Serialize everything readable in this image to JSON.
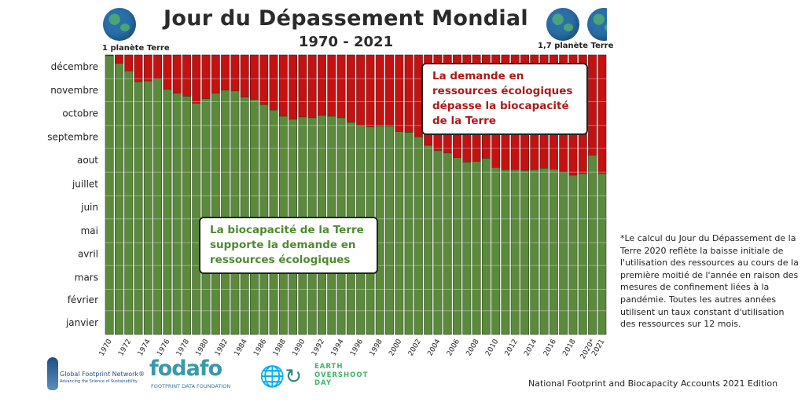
{
  "header": {
    "title": "Jour du Dépassement Mondial",
    "subtitle": "1970 - 2021",
    "left_label": "1 planète Terre",
    "right_label": "1,7 planète Terre"
  },
  "annotations": {
    "red_box": "La demande en ressources écologiques dépasse la biocapacité de la Terre",
    "green_box": "La biocapacité de la Terre supporte la demande en ressources écologiques",
    "note": "*Le calcul du Jour du Dépassement de la Terre 2020 reflète la baisse initiale de l'utilisation des ressources au cours de la première moitié de l'année en raison des mesures de confinement liées à la pandémie. Toutes les autres années utilisent un taux constant d'utilisation des ressources sur 12 mois.",
    "source": "National Footprint and Biocapacity Accounts 2021 Edition"
  },
  "logos": {
    "gfn_name": "Global Footprint Network®",
    "gfn_tag": "Advancing the Science of Sustainability",
    "fodafo_name": "FODAFO",
    "fodafo_sub": "FOOTPRINT DATA FOUNDATION",
    "eod_text": "EARTH OVERSHOOT DAY"
  },
  "colors": {
    "green": "#5b8a3c",
    "red": "#c41111",
    "grid": "#ffffff"
  },
  "chart_data": {
    "type": "bar",
    "stacked": true,
    "title": "Jour du Dépassement Mondial",
    "subtitle": "1970 - 2021",
    "y_tick_labels": [
      "janvier",
      "février",
      "mars",
      "avril",
      "mai",
      "juin",
      "juillet",
      "aout",
      "septembre",
      "octobre",
      "novembre",
      "décembre"
    ],
    "x_tick_labels": [
      "1970",
      "1972",
      "1974",
      "1976",
      "1978",
      "1980",
      "1982",
      "1984",
      "1986",
      "1988",
      "1990",
      "1992",
      "1994",
      "1996",
      "1998",
      "2000",
      "2002",
      "2004",
      "2006",
      "2008",
      "2010",
      "2012",
      "2014",
      "2016",
      "2018",
      "2020*",
      "2021"
    ],
    "categories": [
      "1970",
      "1971",
      "1972",
      "1973",
      "1974",
      "1975",
      "1976",
      "1977",
      "1978",
      "1979",
      "1980",
      "1981",
      "1982",
      "1983",
      "1984",
      "1985",
      "1986",
      "1987",
      "1988",
      "1989",
      "1990",
      "1991",
      "1992",
      "1993",
      "1994",
      "1995",
      "1996",
      "1997",
      "1998",
      "1999",
      "2000",
      "2001",
      "2002",
      "2003",
      "2004",
      "2005",
      "2006",
      "2007",
      "2008",
      "2009",
      "2010",
      "2011",
      "2012",
      "2013",
      "2014",
      "2015",
      "2016",
      "2017",
      "2018",
      "2019",
      "2020*",
      "2021"
    ],
    "overshoot_day": [
      "12-30",
      "12-20",
      "12-10",
      "11-26",
      "11-27",
      "11-30",
      "11-16",
      "11-11",
      "11-07",
      "10-29",
      "11-04",
      "11-11",
      "11-15",
      "11-14",
      "11-06",
      "11-03",
      "10-27",
      "10-20",
      "10-12",
      "10-08",
      "10-11",
      "10-10",
      "10-13",
      "10-12",
      "10-10",
      "10-04",
      "09-30",
      "09-28",
      "09-29",
      "09-29",
      "09-22",
      "09-21",
      "09-15",
      "09-04",
      "08-28",
      "08-25",
      "08-19",
      "08-13",
      "08-14",
      "08-18",
      "08-06",
      "08-03",
      "08-03",
      "08-02",
      "08-03",
      "08-05",
      "08-04",
      "07-31",
      "07-27",
      "07-29",
      "08-22",
      "07-29"
    ],
    "series": [
      {
        "label": "green",
        "meaning": "biocapacity"
      },
      {
        "label": "red",
        "meaning": "overshoot"
      }
    ],
    "ylim": [
      "01-01",
      "12-31"
    ],
    "grid": true,
    "legend": "none"
  }
}
